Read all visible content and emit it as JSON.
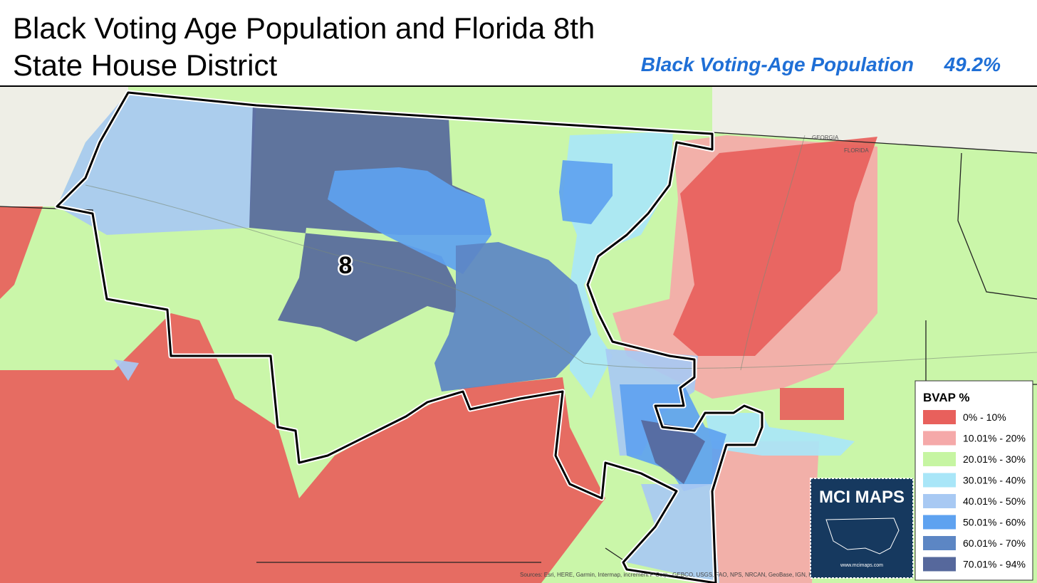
{
  "header": {
    "title_line1": "Black Voting Age Population and Florida 8th",
    "title_line2": "State House District"
  },
  "stat": {
    "label": "Black Voting-Age Population",
    "value": "49.2%"
  },
  "map": {
    "district_label": "8",
    "state_labels": [
      "GEORGIA",
      "FLORIDA"
    ],
    "attribution": "Sources: Esri, HERE, Garmin, Intermap, increment P Corp., GEBCO, USGS, FAO, NPS, NRCAN, GeoBase, IGN, Kadaster NL, Ordnance Survey"
  },
  "legend": {
    "title": "BVAP  %",
    "items": [
      {
        "label": "0% - 10%",
        "color": "#e8605c"
      },
      {
        "label": "10.01% - 20%",
        "color": "#f5a9a9"
      },
      {
        "label": "20.01% - 30%",
        "color": "#c6f5a2"
      },
      {
        "label": "30.01% - 40%",
        "color": "#a9e6f8"
      },
      {
        "label": "40.01% - 50%",
        "color": "#a8c9f3"
      },
      {
        "label": "50.01% - 60%",
        "color": "#5ea2f0"
      },
      {
        "label": "60.01% - 70%",
        "color": "#5c86c4"
      },
      {
        "label": "70.01% - 94%",
        "color": "#56689c"
      }
    ]
  },
  "logo": {
    "title": "MCI MAPS",
    "url": "www.mcimaps.com"
  }
}
